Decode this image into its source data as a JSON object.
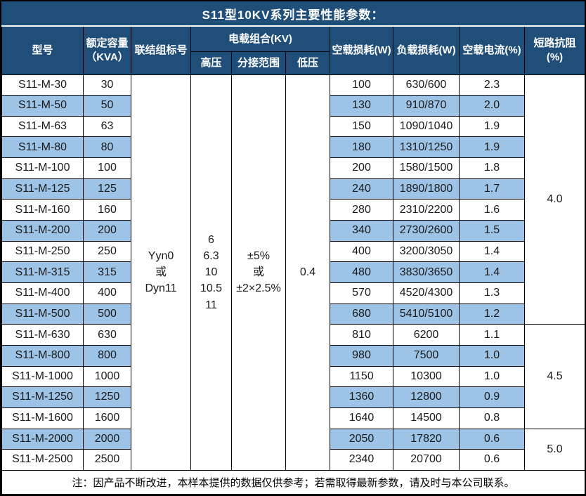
{
  "title": "S11型10KV系列主要性能参数：",
  "columns": {
    "model": "型号",
    "capacity": "额定容量\n（KVA）",
    "connection": "联结组标号",
    "voltage_combo": "电载组合(KV)",
    "high_voltage": "高压",
    "tap_range": "分接范围",
    "low_voltage": "低压",
    "no_load_loss": "空载损耗(W)",
    "load_loss": "负载损耗(W)",
    "no_load_current": "空载电流(%)",
    "short_circuit_impedance": "短路抗阻(%)"
  },
  "merged": {
    "connection": "Yyn0\n或\nDyn11",
    "high_voltage": "6\n6.3\n10\n10.5\n11",
    "tap_range": "±5%\n或\n±2×2.5%",
    "low_voltage": "0.4"
  },
  "rows": [
    {
      "model": "S11-M-30",
      "capacity": "30",
      "no_load_loss": "100",
      "load_loss": "630/600",
      "no_load_current": "2.3"
    },
    {
      "model": "S11-M-50",
      "capacity": "50",
      "no_load_loss": "130",
      "load_loss": "910/870",
      "no_load_current": "2.0"
    },
    {
      "model": "S11-M-63",
      "capacity": "63",
      "no_load_loss": "150",
      "load_loss": "1090/1040",
      "no_load_current": "1.9"
    },
    {
      "model": "S11-M-80",
      "capacity": "80",
      "no_load_loss": "180",
      "load_loss": "1310/1250",
      "no_load_current": "1.9"
    },
    {
      "model": "S11-M-100",
      "capacity": "100",
      "no_load_loss": "200",
      "load_loss": "1580/1500",
      "no_load_current": "1.8"
    },
    {
      "model": "S11-M-125",
      "capacity": "125",
      "no_load_loss": "240",
      "load_loss": "1890/1800",
      "no_load_current": "1.7"
    },
    {
      "model": "S11-M-160",
      "capacity": "160",
      "no_load_loss": "280",
      "load_loss": "2310/2200",
      "no_load_current": "1.6"
    },
    {
      "model": "S11-M-200",
      "capacity": "200",
      "no_load_loss": "340",
      "load_loss": "2730/2600",
      "no_load_current": "1.5"
    },
    {
      "model": "S11-M-250",
      "capacity": "250",
      "no_load_loss": "400",
      "load_loss": "3200/3050",
      "no_load_current": "1.4"
    },
    {
      "model": "S11-M-315",
      "capacity": "315",
      "no_load_loss": "480",
      "load_loss": "3830/3650",
      "no_load_current": "1.4"
    },
    {
      "model": "S11-M-400",
      "capacity": "400",
      "no_load_loss": "570",
      "load_loss": "4520/4300",
      "no_load_current": "1.3"
    },
    {
      "model": "S11-M-500",
      "capacity": "500",
      "no_load_loss": "680",
      "load_loss": "5410/5100",
      "no_load_current": "1.2"
    },
    {
      "model": "S11-M-630",
      "capacity": "630",
      "no_load_loss": "810",
      "load_loss": "6200",
      "no_load_current": "1.1"
    },
    {
      "model": "S11-M-800",
      "capacity": "800",
      "no_load_loss": "980",
      "load_loss": "7500",
      "no_load_current": "1.0"
    },
    {
      "model": "S11-M-1000",
      "capacity": "1000",
      "no_load_loss": "1150",
      "load_loss": "10300",
      "no_load_current": "1.0"
    },
    {
      "model": "S11-M-1250",
      "capacity": "1250",
      "no_load_loss": "1360",
      "load_loss": "12800",
      "no_load_current": "0.9"
    },
    {
      "model": "S11-M-1600",
      "capacity": "1600",
      "no_load_loss": "1640",
      "load_loss": "14500",
      "no_load_current": "0.8"
    },
    {
      "model": "S11-M-2000",
      "capacity": "2000",
      "no_load_loss": "2050",
      "load_loss": "17820",
      "no_load_current": "0.6"
    },
    {
      "model": "S11-M-2500",
      "capacity": "2500",
      "no_load_loss": "2340",
      "load_loss": "20700",
      "no_load_current": "0.6"
    }
  ],
  "impedance_groups": [
    {
      "value": "4.0",
      "row_span": 12
    },
    {
      "value": "4.5",
      "row_span": 5
    },
    {
      "value": "5.0",
      "row_span": 2
    }
  ],
  "footer_note": "注：因产品不断改进，本样本提供的数据仅供参考；若需取得最新参数，请及时与本公司联系。",
  "colors": {
    "header_bg": "#1F4E79",
    "row_alt_bg": "#9DC3E6",
    "row_bg": "#FFFFFF",
    "border": "#000000",
    "header_text": "#FFFFFF",
    "body_text": "#1A1A1A"
  }
}
